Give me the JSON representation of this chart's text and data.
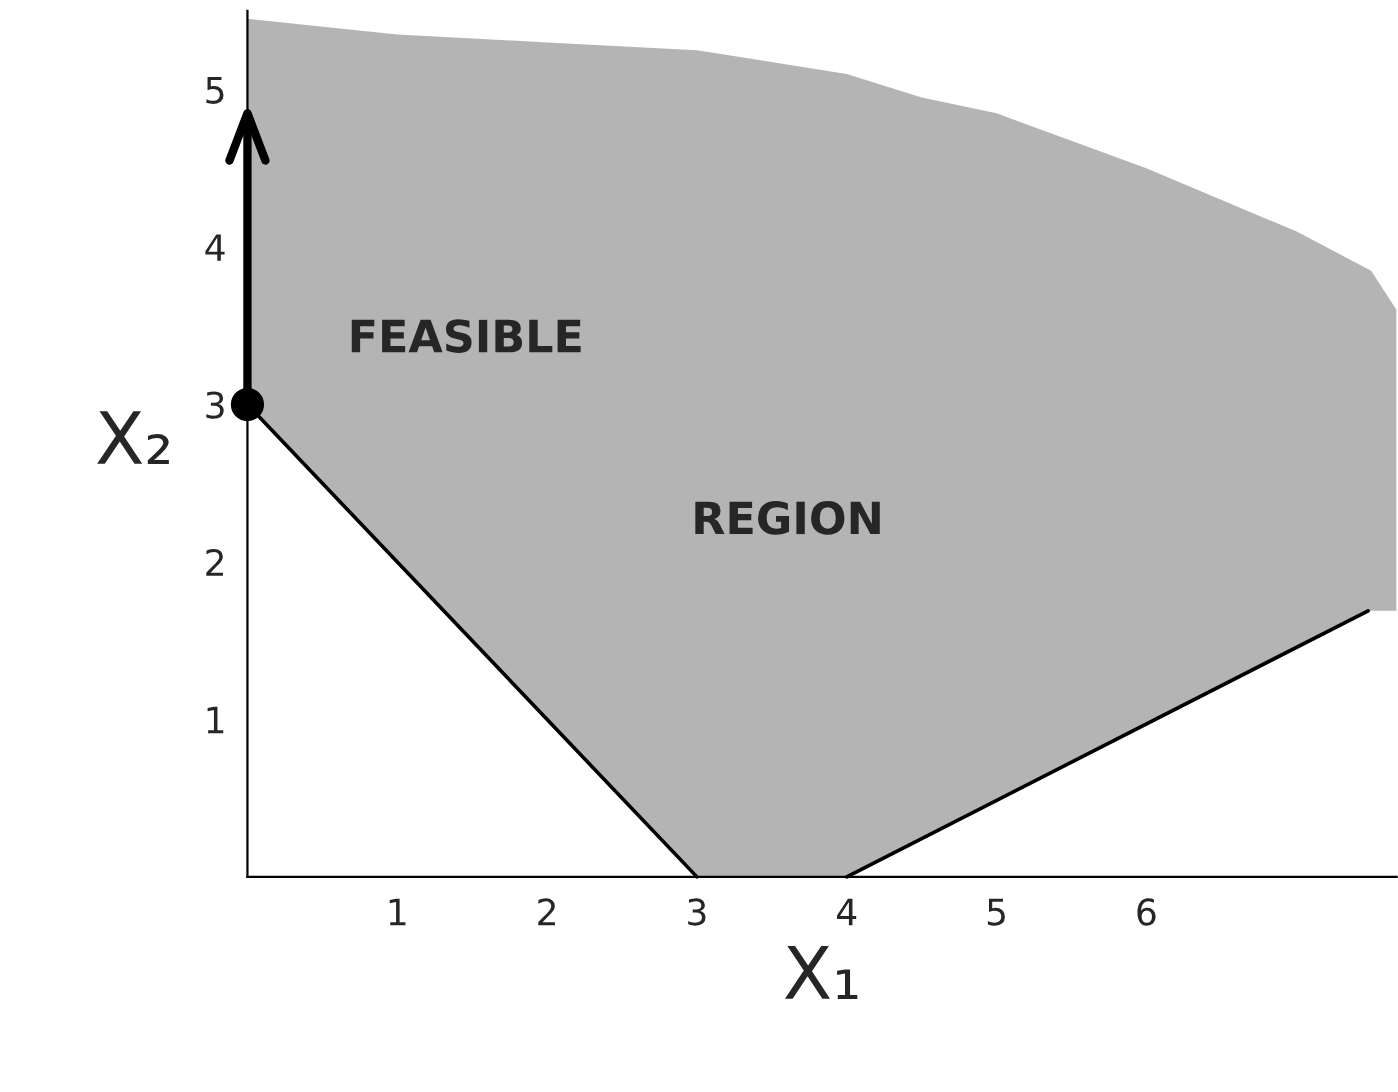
{
  "chart_data": {
    "type": "line",
    "xlabel": "X₁",
    "ylabel": "X₂",
    "xlim": [
      0,
      7.67
    ],
    "ylim": [
      0,
      5.5
    ],
    "xticks": [
      1,
      2,
      3,
      4,
      5,
      6
    ],
    "yticks": [
      1,
      2,
      3,
      4,
      5
    ],
    "grid": false,
    "legend": false,
    "series": [
      {
        "type": "area",
        "color": "#b4b4b4",
        "x": [
          0,
          1,
          2,
          3,
          4,
          4.5,
          5,
          6,
          7,
          7.5,
          7.67
        ],
        "values": [
          5.45,
          5.35,
          5.3,
          5.25,
          5.1,
          4.95,
          4.85,
          4.5,
          4.1,
          3.85,
          3.6
        ]
      },
      {
        "color": "#000000",
        "x": [
          0,
          3
        ],
        "values": [
          3,
          0
        ]
      },
      {
        "color": "#000000",
        "x": [
          4,
          7.48
        ],
        "values": [
          0,
          1.69
        ]
      },
      {
        "type": "line",
        "color": "#000000",
        "x": [
          0,
          0
        ],
        "values": [
          3,
          4.85
        ]
      },
      {
        "type": "scatter",
        "color": "#000000",
        "x": [
          0
        ],
        "values": [
          3
        ]
      }
    ],
    "annotations": [
      "FEASIBLE",
      "REGION"
    ]
  }
}
